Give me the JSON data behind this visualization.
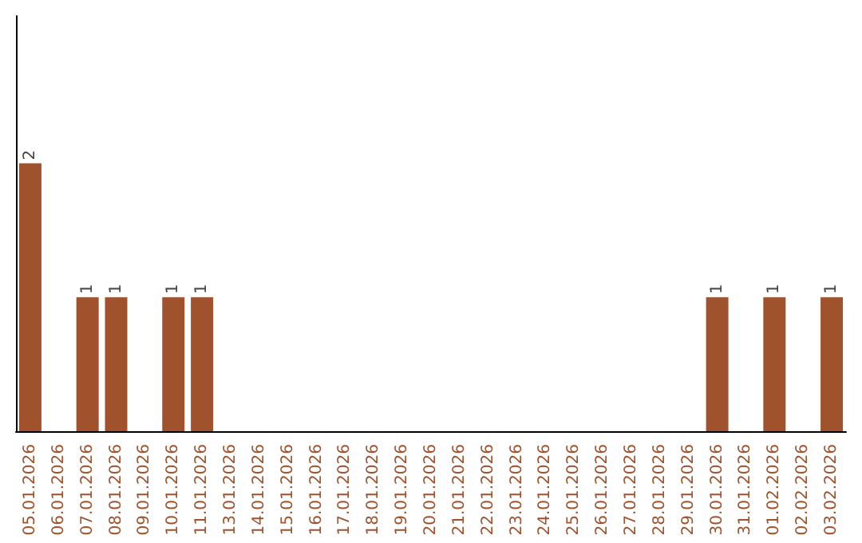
{
  "chart_data": {
    "type": "bar",
    "categories": [
      "05.01.2026",
      "06.01.2026",
      "07.01.2026",
      "08.01.2026",
      "09.01.2026",
      "10.01.2026",
      "11.01.2026",
      "13.01.2026",
      "14.01.2026",
      "15.01.2026",
      "16.01.2026",
      "17.01.2026",
      "18.01.2026",
      "19.01.2026",
      "20.01.2026",
      "21.01.2026",
      "22.01.2026",
      "23.01.2026",
      "24.01.2026",
      "25.01.2026",
      "26.01.2026",
      "27.01.2026",
      "28.01.2026",
      "29.01.2026",
      "30.01.2026",
      "31.01.2026",
      "01.02.2026",
      "02.02.2026",
      "03.02.2026"
    ],
    "values": [
      2,
      0,
      1,
      1,
      0,
      1,
      1,
      0,
      0,
      0,
      0,
      0,
      0,
      0,
      0,
      0,
      0,
      0,
      0,
      0,
      0,
      0,
      0,
      0,
      1,
      0,
      1,
      0,
      1
    ],
    "value_labels": [
      "2",
      null,
      "1",
      "1",
      null,
      "1",
      "1",
      null,
      null,
      null,
      null,
      null,
      null,
      null,
      null,
      null,
      null,
      null,
      null,
      null,
      null,
      null,
      null,
      null,
      "1",
      null,
      "1",
      null,
      "1"
    ],
    "color": "#a0522d",
    "ylim": [
      0,
      3.1
    ]
  }
}
